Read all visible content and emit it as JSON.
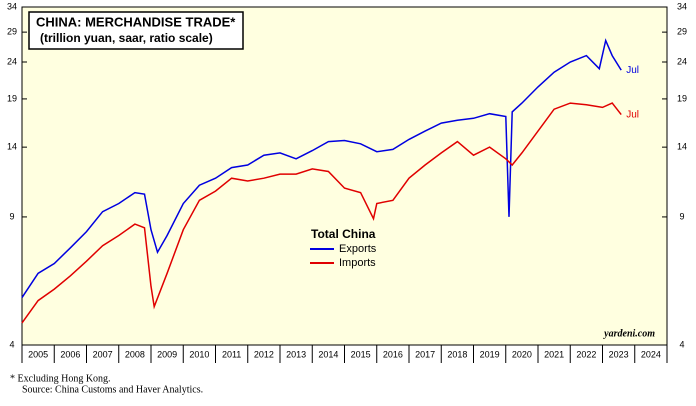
{
  "chart_data": {
    "type": "line",
    "title": "CHINA: MERCHANDISE TRADE*",
    "subtitle": "(trillion yuan, saar, ratio scale)",
    "legend_title": "Total China",
    "credit": "yardeni.com",
    "notes": [
      "*  Excluding Hong Kong.",
      "Source: China Customs and Haver Analytics."
    ],
    "log_scale": true,
    "xlim": [
      2005,
      2025
    ],
    "xminor": [
      2005,
      2006,
      2007,
      2008,
      2009,
      2010,
      2011,
      2012,
      2013,
      2014,
      2015,
      2016,
      2017,
      2018,
      2019,
      2020,
      2021,
      2022,
      2023,
      2024,
      2025
    ],
    "xticks": [
      {
        "value": 2005.5,
        "label": "2005"
      },
      {
        "value": 2006.5,
        "label": "2006"
      },
      {
        "value": 2007.5,
        "label": "2007"
      },
      {
        "value": 2008.5,
        "label": "2008"
      },
      {
        "value": 2009.5,
        "label": "2009"
      },
      {
        "value": 2010.5,
        "label": "2010"
      },
      {
        "value": 2011.5,
        "label": "2011"
      },
      {
        "value": 2012.5,
        "label": "2012"
      },
      {
        "value": 2013.5,
        "label": "2013"
      },
      {
        "value": 2014.5,
        "label": "2014"
      },
      {
        "value": 2015.5,
        "label": "2015"
      },
      {
        "value": 2016.5,
        "label": "2016"
      },
      {
        "value": 2017.5,
        "label": "2017"
      },
      {
        "value": 2018.5,
        "label": "2018"
      },
      {
        "value": 2019.5,
        "label": "2019"
      },
      {
        "value": 2020.5,
        "label": "2020"
      },
      {
        "value": 2021.5,
        "label": "2021"
      },
      {
        "value": 2022.5,
        "label": "2022"
      },
      {
        "value": 2023.5,
        "label": "2023"
      },
      {
        "value": 2024.5,
        "label": "2024"
      }
    ],
    "ylim": [
      4,
      34
    ],
    "yticks": [
      4,
      9,
      14,
      19,
      24,
      29,
      34
    ],
    "series": [
      {
        "name": "Exports",
        "color": "#0000e0",
        "end_label": "Jul",
        "x": [
          2005.0,
          2005.5,
          2006.0,
          2006.5,
          2007.0,
          2007.5,
          2008.0,
          2008.5,
          2008.8,
          2009.0,
          2009.2,
          2009.5,
          2010.0,
          2010.5,
          2011.0,
          2011.5,
          2012.0,
          2012.5,
          2013.0,
          2013.5,
          2014.0,
          2014.5,
          2015.0,
          2015.5,
          2016.0,
          2016.5,
          2017.0,
          2017.5,
          2018.0,
          2018.5,
          2019.0,
          2019.5,
          2020.0,
          2020.1,
          2020.2,
          2020.5,
          2021.0,
          2021.5,
          2022.0,
          2022.5,
          2022.9,
          2023.1,
          2023.3,
          2023.58
        ],
        "values": [
          5.4,
          6.3,
          6.7,
          7.4,
          8.2,
          9.3,
          9.8,
          10.5,
          10.4,
          8.3,
          7.2,
          8.0,
          9.8,
          11.0,
          11.5,
          12.3,
          12.5,
          13.3,
          13.5,
          13.0,
          13.7,
          14.5,
          14.6,
          14.3,
          13.6,
          13.8,
          14.7,
          15.5,
          16.3,
          16.6,
          16.8,
          17.3,
          17.0,
          9.0,
          17.5,
          18.5,
          20.5,
          22.5,
          24.0,
          25.0,
          23.0,
          27.5,
          25.0,
          22.8
        ]
      },
      {
        "name": "Imports",
        "color": "#e00000",
        "end_label": "Jul",
        "x": [
          2005.0,
          2005.5,
          2006.0,
          2006.5,
          2007.0,
          2007.5,
          2008.0,
          2008.5,
          2008.8,
          2009.0,
          2009.1,
          2009.5,
          2010.0,
          2010.5,
          2011.0,
          2011.5,
          2012.0,
          2012.5,
          2013.0,
          2013.5,
          2014.0,
          2014.5,
          2015.0,
          2015.5,
          2015.9,
          2016.0,
          2016.5,
          2017.0,
          2017.5,
          2018.0,
          2018.5,
          2019.0,
          2019.5,
          2020.0,
          2020.2,
          2020.5,
          2021.0,
          2021.5,
          2022.0,
          2022.5,
          2023.0,
          2023.3,
          2023.58
        ],
        "values": [
          4.6,
          5.3,
          5.7,
          6.2,
          6.8,
          7.5,
          8.0,
          8.6,
          8.4,
          5.8,
          5.1,
          6.3,
          8.3,
          10.0,
          10.6,
          11.5,
          11.3,
          11.5,
          11.8,
          11.8,
          12.2,
          12.0,
          10.8,
          10.5,
          8.9,
          9.8,
          10.0,
          11.5,
          12.5,
          13.5,
          14.5,
          13.3,
          14.0,
          13.0,
          12.5,
          13.5,
          15.5,
          17.8,
          18.5,
          18.3,
          18.0,
          18.5,
          17.2
        ]
      }
    ]
  }
}
